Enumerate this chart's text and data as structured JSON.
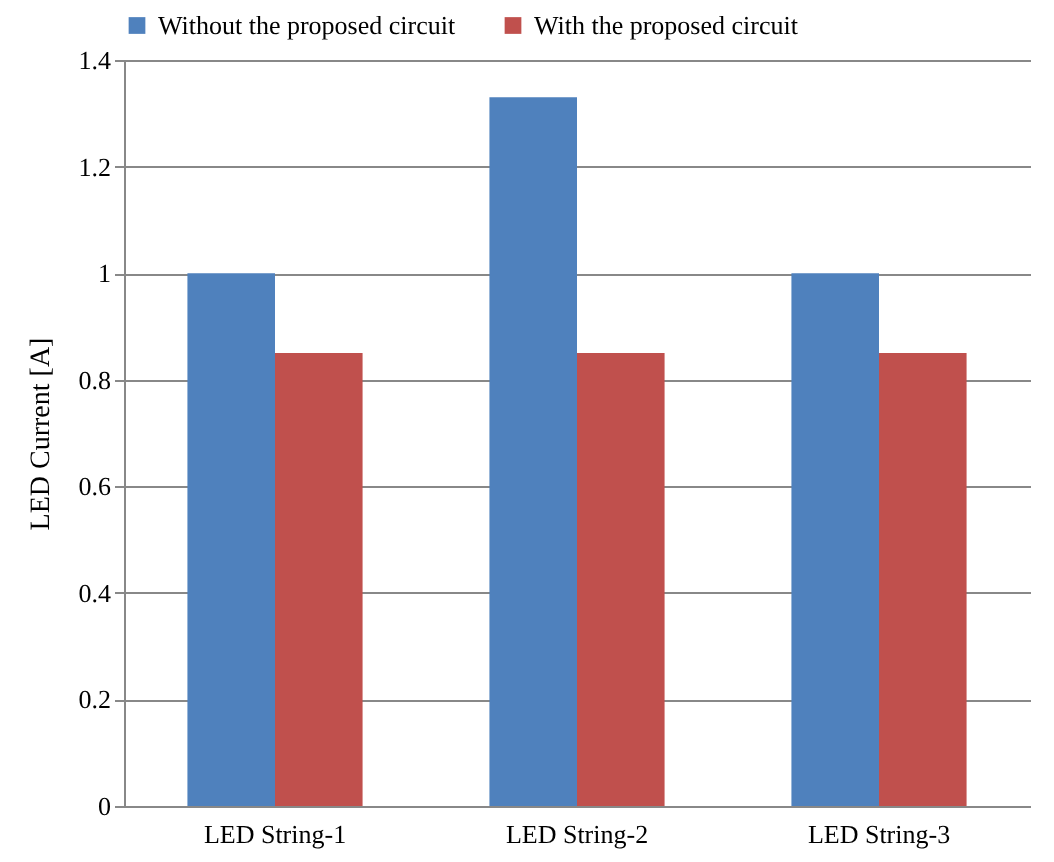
{
  "chart_data": {
    "type": "bar",
    "ylabel": "LED Current [A]",
    "categories": [
      "LED String-1",
      "LED String-2",
      "LED String-3"
    ],
    "series": [
      {
        "name": "Without the proposed circuit",
        "color": "#4f81bd",
        "values": [
          1,
          1.33,
          1
        ]
      },
      {
        "name": "With the proposed circuit",
        "color": "#c0504d",
        "values": [
          0.85,
          0.85,
          0.85
        ]
      }
    ],
    "ylim": [
      0,
      1.4
    ],
    "yticks": [
      0,
      0.2,
      0.4,
      0.6,
      0.8,
      1,
      1.2,
      1.4
    ],
    "grid": "y",
    "legend": "top"
  }
}
